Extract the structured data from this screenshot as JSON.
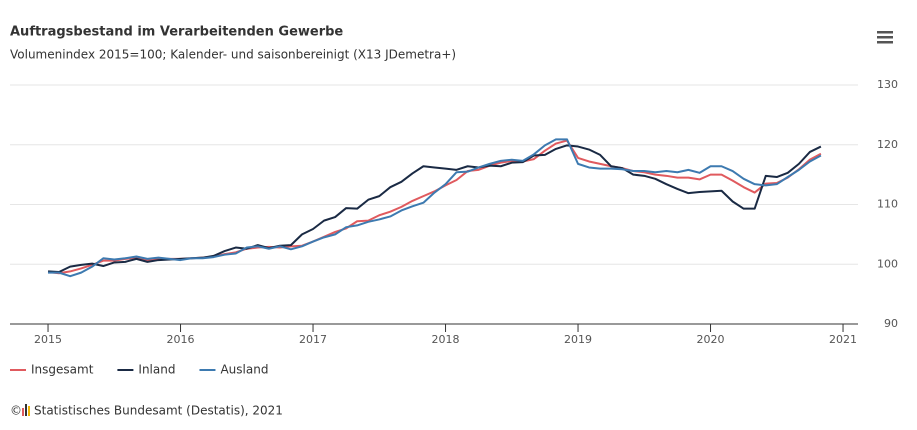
{
  "chart_data": {
    "type": "line",
    "title": "Auftragsbestand im Verarbeitenden Gewerbe",
    "subtitle": "Volumenindex 2015=100; Kalender- und saisonbereinigt (X13 JDemetra+)",
    "copyright": "©",
    "source": "Statistisches Bundesamt (Destatis), 2021",
    "x": [
      2015,
      2015.083,
      2015.167,
      2015.25,
      2015.333,
      2015.417,
      2015.5,
      2015.583,
      2015.667,
      2015.75,
      2015.833,
      2015.917,
      2016,
      2016.083,
      2016.167,
      2016.25,
      2016.333,
      2016.417,
      2016.5,
      2016.583,
      2016.667,
      2016.75,
      2016.833,
      2016.917,
      2017,
      2017.083,
      2017.167,
      2017.25,
      2017.333,
      2017.417,
      2017.5,
      2017.583,
      2017.667,
      2017.75,
      2017.833,
      2017.917,
      2018,
      2018.083,
      2018.167,
      2018.25,
      2018.333,
      2018.417,
      2018.5,
      2018.583,
      2018.667,
      2018.75,
      2018.833,
      2018.917,
      2019,
      2019.083,
      2019.167,
      2019.25,
      2019.333,
      2019.417,
      2019.5,
      2019.583,
      2019.667,
      2019.75,
      2019.833,
      2019.917,
      2020,
      2020.083,
      2020.167,
      2020.25,
      2020.333,
      2020.417,
      2020.5,
      2020.583,
      2020.667,
      2020.75,
      2020.833
    ],
    "series": [
      {
        "name": "Insgesamt",
        "color": "#e05a5e",
        "values": [
          98.7,
          98.5,
          98.8,
          99.3,
          99.9,
          100.6,
          100.6,
          100.9,
          101.1,
          100.7,
          100.9,
          100.9,
          100.9,
          101.0,
          101.1,
          101.3,
          101.7,
          102.0,
          102.6,
          102.8,
          102.9,
          102.8,
          103.0,
          103.1,
          103.8,
          104.6,
          105.4,
          106.0,
          107.2,
          107.3,
          108.2,
          108.8,
          109.6,
          110.6,
          111.4,
          112.2,
          113.2,
          114.1,
          115.6,
          115.8,
          116.5,
          117.0,
          117.3,
          117.2,
          117.6,
          119.0,
          120.2,
          120.7,
          117.8,
          117.2,
          116.8,
          116.4,
          116.1,
          115.6,
          115.4,
          115.0,
          114.8,
          114.5,
          114.5,
          114.2,
          115.0,
          115.0,
          114.0,
          112.9,
          112.0,
          113.5,
          113.6,
          114.5,
          115.9,
          117.5,
          118.5
        ]
      },
      {
        "name": "Inland",
        "color": "#1a2a44",
        "values": [
          98.8,
          98.7,
          99.6,
          99.9,
          100.1,
          99.7,
          100.3,
          100.4,
          100.9,
          100.4,
          100.7,
          100.8,
          100.9,
          101.0,
          101.1,
          101.4,
          102.2,
          102.8,
          102.6,
          103.2,
          102.7,
          103.1,
          103.2,
          105.0,
          105.9,
          107.3,
          107.9,
          109.4,
          109.3,
          110.8,
          111.4,
          112.9,
          113.8,
          115.2,
          116.4,
          116.2,
          116.0,
          115.8,
          116.4,
          116.2,
          116.5,
          116.4,
          117.0,
          117.1,
          118.2,
          118.3,
          119.3,
          119.9,
          119.7,
          119.2,
          118.3,
          116.4,
          116.1,
          115.0,
          114.8,
          114.3,
          113.4,
          112.6,
          111.9,
          112.1,
          112.2,
          112.3,
          110.5,
          109.3,
          109.3,
          114.8,
          114.6,
          115.3,
          116.8,
          118.8,
          119.7
        ]
      },
      {
        "name": "Ausland",
        "color": "#3d7ab0",
        "values": [
          98.6,
          98.6,
          98.0,
          98.6,
          99.6,
          101.0,
          100.8,
          101.0,
          101.3,
          100.9,
          101.1,
          100.9,
          100.7,
          101.0,
          101.0,
          101.2,
          101.6,
          101.8,
          102.8,
          103.0,
          102.6,
          103.0,
          102.5,
          103.0,
          103.8,
          104.5,
          105.0,
          106.2,
          106.5,
          107.1,
          107.5,
          108.0,
          109.0,
          109.7,
          110.3,
          112.0,
          113.4,
          115.4,
          115.5,
          116.2,
          116.8,
          117.3,
          117.5,
          117.3,
          118.4,
          119.9,
          120.9,
          120.9,
          116.8,
          116.2,
          116.0,
          116.0,
          115.9,
          115.6,
          115.6,
          115.4,
          115.6,
          115.4,
          115.8,
          115.3,
          116.4,
          116.4,
          115.6,
          114.3,
          113.4,
          113.2,
          113.4,
          114.6,
          115.8,
          117.2,
          118.2
        ]
      }
    ],
    "xlim": [
      2014.713,
      2021.113
    ],
    "xticks": [
      2015,
      2016,
      2017,
      2018,
      2019,
      2020,
      2021
    ],
    "ylim": [
      90,
      130
    ],
    "yticks": [
      90,
      100,
      110,
      120,
      130
    ],
    "grid": true,
    "legend": "bottom-left"
  }
}
